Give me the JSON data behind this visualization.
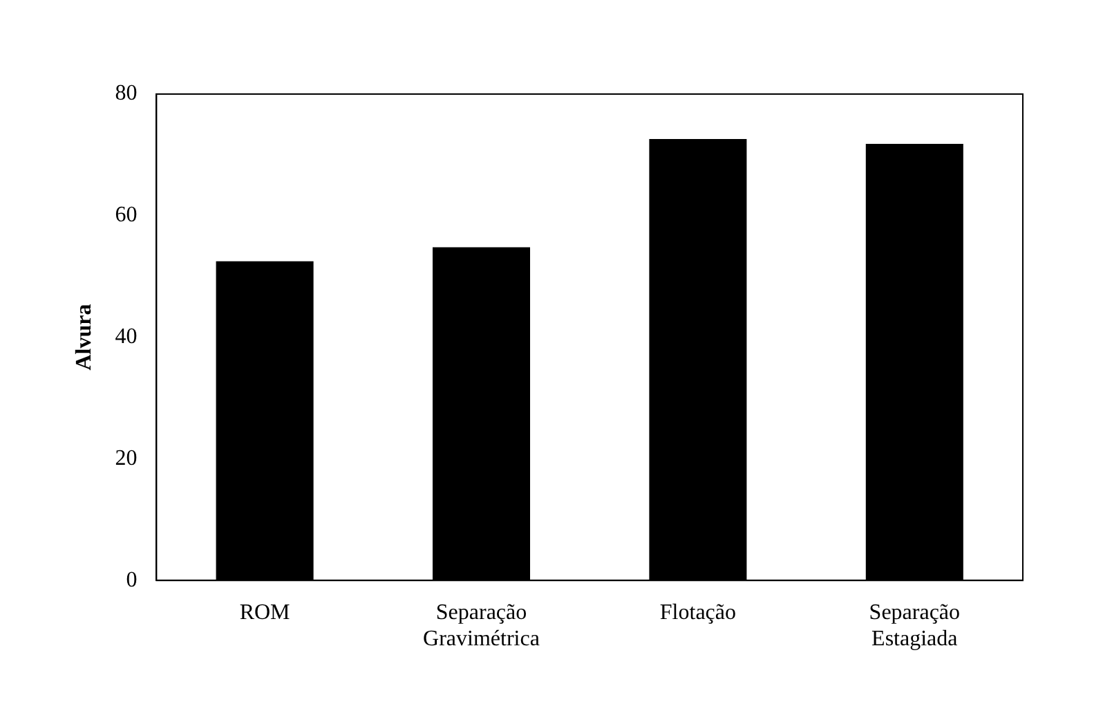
{
  "chart_data": {
    "type": "bar",
    "ylabel": "Alvura",
    "categories": [
      "ROM",
      "Separação Gravimétrica",
      "Flotação",
      "Separação Estagiada"
    ],
    "values": [
      52.5,
      54.8,
      72.6,
      71.8
    ],
    "color": "#000000",
    "ylim": [
      0,
      80
    ],
    "yticks": [
      0,
      20,
      40,
      60,
      80
    ],
    "grid": false
  }
}
